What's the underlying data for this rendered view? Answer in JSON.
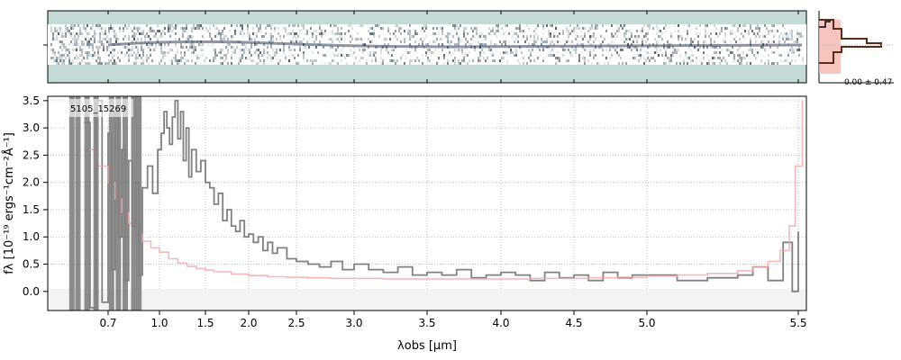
{
  "chart_data": {
    "type": "line",
    "object_id": "5105_15269",
    "xlabel": "λobs [μm]",
    "ylabel": "fλ [10⁻¹⁹ ergs⁻¹cm⁻²Å⁻¹]",
    "x_tick_labels": [
      "0.7",
      "1.0",
      "1.5",
      "2.0",
      "2.5",
      "3.0",
      "3.5",
      "4.0",
      "4.5",
      "5.0",
      "5.5"
    ],
    "x_tick_values": [
      0.7,
      1.0,
      1.5,
      2.0,
      2.5,
      3.0,
      3.5,
      4.0,
      4.5,
      5.0,
      5.5
    ],
    "y_tick_labels": [
      "0.0",
      "0.5",
      "1.0",
      "1.5",
      "2.0",
      "2.5",
      "3.0",
      "3.5"
    ],
    "y_tick_values": [
      0.0,
      0.5,
      1.0,
      1.5,
      2.0,
      2.5,
      3.0,
      3.5
    ],
    "xlim": [
      0.5,
      5.52
    ],
    "ylim": [
      -0.35,
      3.58
    ],
    "grid": true,
    "residual_hist_label": "-0.00 ± 0.47",
    "series": [
      {
        "kind": "flux",
        "color": "#808080",
        "x": [
          0.62,
          0.64,
          0.66,
          0.68,
          0.7,
          0.72,
          0.74,
          0.76,
          0.78,
          0.8,
          0.82,
          0.84,
          0.86,
          0.88,
          0.9,
          0.93,
          0.96,
          0.99,
          1.02,
          1.05,
          1.08,
          1.11,
          1.14,
          1.17,
          1.2,
          1.23,
          1.26,
          1.29,
          1.32,
          1.35,
          1.4,
          1.45,
          1.5,
          1.55,
          1.6,
          1.65,
          1.7,
          1.75,
          1.8,
          1.85,
          1.9,
          1.95,
          2.0,
          2.05,
          2.1,
          2.15,
          2.2,
          2.25,
          2.3,
          2.4,
          2.5,
          2.6,
          2.7,
          2.8,
          2.9,
          3.0,
          3.1,
          3.2,
          3.3,
          3.4,
          3.5,
          3.6,
          3.7,
          3.8,
          3.9,
          4.0,
          4.1,
          4.2,
          4.3,
          4.4,
          4.5,
          4.6,
          4.7,
          4.8,
          4.9,
          5.0,
          5.1,
          5.2,
          5.3,
          5.35,
          5.4,
          5.45,
          5.48,
          5.5
        ],
        "y": [
          3.1,
          -0.3,
          3.5,
          -0.2,
          2.9,
          0.4,
          3.3,
          1.0,
          2.6,
          0.2,
          2.4,
          1.2,
          2.0,
          0.3,
          1.9,
          2.3,
          1.8,
          2.6,
          2.9,
          3.3,
          3.0,
          2.7,
          3.2,
          3.5,
          2.8,
          3.3,
          2.4,
          3.0,
          2.1,
          2.6,
          2.2,
          2.4,
          2.0,
          1.9,
          1.6,
          1.8,
          1.3,
          1.5,
          1.2,
          1.1,
          1.3,
          1.0,
          1.05,
          0.9,
          1.0,
          0.75,
          0.9,
          0.7,
          0.8,
          0.6,
          0.55,
          0.5,
          0.45,
          0.55,
          0.4,
          0.5,
          0.4,
          0.35,
          0.45,
          0.3,
          0.35,
          0.3,
          0.4,
          0.25,
          0.3,
          0.35,
          0.3,
          0.2,
          0.35,
          0.25,
          0.3,
          0.2,
          0.35,
          0.25,
          0.3,
          0.3,
          0.2,
          0.25,
          0.3,
          0.45,
          0.2,
          0.9,
          0.0,
          1.1
        ]
      },
      {
        "kind": "error",
        "color": "#f4a6a6",
        "x": [
          0.62,
          0.66,
          0.7,
          0.74,
          0.78,
          0.82,
          0.86,
          0.9,
          0.95,
          1.0,
          1.1,
          1.2,
          1.3,
          1.4,
          1.5,
          1.6,
          1.8,
          2.0,
          2.2,
          2.4,
          2.6,
          2.8,
          3.0,
          3.2,
          3.4,
          3.6,
          3.8,
          4.0,
          4.2,
          4.4,
          4.6,
          4.8,
          5.0,
          5.1,
          5.2,
          5.3,
          5.35,
          5.4,
          5.44,
          5.47,
          5.49,
          5.51
        ],
        "y": [
          2.6,
          2.3,
          2.0,
          1.7,
          1.45,
          1.25,
          1.05,
          0.92,
          0.8,
          0.72,
          0.6,
          0.52,
          0.46,
          0.42,
          0.39,
          0.36,
          0.32,
          0.29,
          0.27,
          0.26,
          0.25,
          0.24,
          0.24,
          0.23,
          0.23,
          0.23,
          0.23,
          0.23,
          0.24,
          0.24,
          0.25,
          0.26,
          0.28,
          0.3,
          0.33,
          0.38,
          0.45,
          0.55,
          0.75,
          1.2,
          2.3,
          3.5
        ]
      }
    ]
  }
}
